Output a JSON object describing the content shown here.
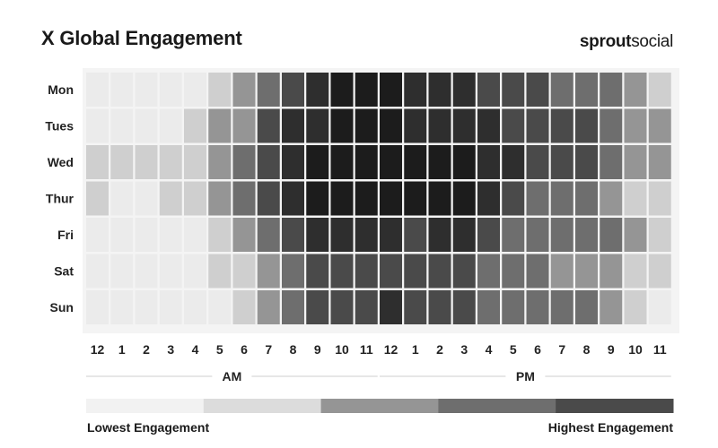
{
  "chart_data": {
    "type": "heatmap",
    "title": "X Global Engagement",
    "days": [
      "Mon",
      "Tues",
      "Wed",
      "Thur",
      "Fri",
      "Sat",
      "Sun"
    ],
    "hours": [
      "12",
      "1",
      "2",
      "3",
      "4",
      "5",
      "6",
      "7",
      "8",
      "9",
      "10",
      "11",
      "12",
      "1",
      "2",
      "3",
      "4",
      "5",
      "6",
      "7",
      "8",
      "9",
      "10",
      "11"
    ],
    "period_labels": [
      "AM",
      "PM"
    ],
    "scale_colors": [
      "#ebebeb",
      "#cfcfcf",
      "#959595",
      "#6e6e6e",
      "#4a4a4a",
      "#2e2e2e",
      "#1c1c1c"
    ],
    "values": [
      [
        0,
        0,
        0,
        0,
        0,
        1,
        2,
        3,
        4,
        5,
        6,
        6,
        6,
        5,
        5,
        5,
        4,
        4,
        4,
        3,
        3,
        3,
        2,
        1
      ],
      [
        0,
        0,
        0,
        0,
        1,
        2,
        2,
        4,
        5,
        5,
        6,
        6,
        6,
        5,
        5,
        5,
        5,
        4,
        4,
        4,
        4,
        3,
        2,
        2
      ],
      [
        1,
        1,
        1,
        1,
        1,
        2,
        3,
        4,
        5,
        6,
        6,
        6,
        6,
        6,
        6,
        6,
        5,
        5,
        4,
        4,
        4,
        3,
        2,
        2
      ],
      [
        1,
        0,
        0,
        1,
        1,
        2,
        3,
        4,
        5,
        6,
        6,
        6,
        6,
        6,
        6,
        6,
        5,
        4,
        3,
        3,
        3,
        2,
        1,
        1
      ],
      [
        0,
        0,
        0,
        0,
        0,
        1,
        2,
        3,
        4,
        5,
        5,
        5,
        5,
        4,
        5,
        5,
        4,
        3,
        3,
        3,
        3,
        3,
        2,
        1
      ],
      [
        0,
        0,
        0,
        0,
        0,
        1,
        1,
        2,
        3,
        4,
        4,
        4,
        4,
        4,
        4,
        4,
        3,
        3,
        3,
        2,
        2,
        2,
        1,
        1
      ],
      [
        0,
        0,
        0,
        0,
        0,
        0,
        1,
        2,
        3,
        4,
        4,
        4,
        5,
        4,
        4,
        4,
        3,
        3,
        3,
        3,
        3,
        2,
        1,
        0
      ]
    ],
    "legend": {
      "colors": [
        "#f2f2f2",
        "#dcdcdc",
        "#959595",
        "#6e6e6e",
        "#4a4a4a"
      ],
      "low_label": "Lowest Engagement",
      "high_label": "Highest Engagement"
    }
  },
  "brand": {
    "bold": "sprout",
    "regular": "social"
  }
}
